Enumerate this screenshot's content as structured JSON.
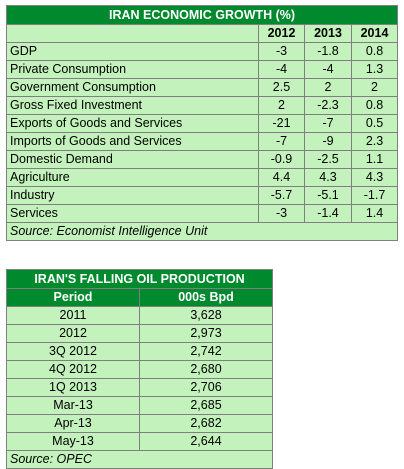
{
  "growth": {
    "title": "IRAN ECONOMIC GROWTH (%)",
    "years": [
      "2012",
      "2013",
      "2014"
    ],
    "rows": [
      {
        "label": "GDP",
        "values": [
          "-3",
          "-1.8",
          "0.8"
        ]
      },
      {
        "label": "Private Consumption",
        "values": [
          "-4",
          "-4",
          "1.3"
        ]
      },
      {
        "label": "Government Consumption",
        "values": [
          "2.5",
          "2",
          "2"
        ]
      },
      {
        "label": "Gross Fixed Investment",
        "values": [
          "2",
          "-2.3",
          "0.8"
        ]
      },
      {
        "label": "Exports of Goods and Services",
        "values": [
          "-21",
          "-7",
          "0.5"
        ]
      },
      {
        "label": "Imports of Goods and Services",
        "values": [
          "-7",
          "-9",
          "2.3"
        ]
      },
      {
        "label": "Domestic Demand",
        "values": [
          "-0.9",
          "-2.5",
          "1.1"
        ]
      },
      {
        "label": "Agriculture",
        "values": [
          "4.4",
          "4.3",
          "4.3"
        ]
      },
      {
        "label": "Industry",
        "values": [
          "-5.7",
          "-5.1",
          "-1.7"
        ]
      },
      {
        "label": "Services",
        "values": [
          "-3",
          "-1.4",
          "1.4"
        ]
      }
    ],
    "source": "Source: Economist Intelligence Unit"
  },
  "oil": {
    "title": "IRAN'S FALLING OIL PRODUCTION",
    "col_period": "Period",
    "col_value": "000s Bpd",
    "rows": [
      {
        "period": "2011",
        "value": "3,628"
      },
      {
        "period": "2012",
        "value": "2,973"
      },
      {
        "period": "3Q 2012",
        "value": "2,742"
      },
      {
        "period": "4Q 2012",
        "value": "2,680"
      },
      {
        "period": "1Q 2013",
        "value": "2,706"
      },
      {
        "period": "Mar-13",
        "value": "2,685"
      },
      {
        "period": "Apr-13",
        "value": "2,682"
      },
      {
        "period": "May-13",
        "value": "2,644"
      }
    ],
    "source": "Source: OPEC"
  },
  "colors": {
    "header_green": "#008a2e",
    "cell_green": "#c4f2bc",
    "border": "#7f7f7f"
  }
}
